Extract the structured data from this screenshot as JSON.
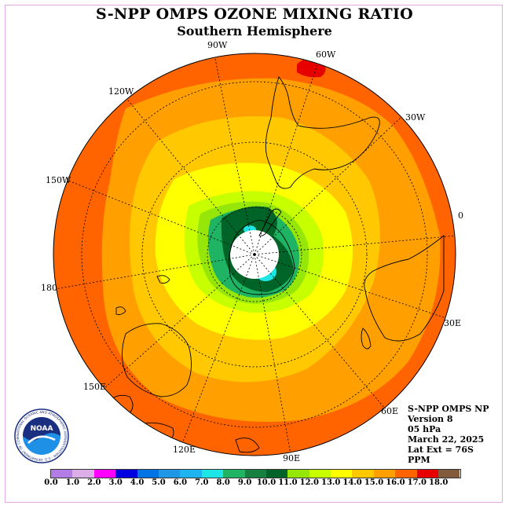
{
  "title": "S-NPP OMPS OZONE MIXING RATIO",
  "subtitle": "Southern Hemisphere",
  "longitude_labels": [
    "90W",
    "60W",
    "30W",
    "0",
    "30E",
    "60E",
    "90E",
    "120E",
    "150E",
    "180",
    "150W",
    "120W"
  ],
  "info": {
    "product": "S-NPP OMPS NP",
    "version": "Version 8",
    "level": "05 hPa",
    "date": "March 22, 2025",
    "lat_ext": "Lat Ext = 76S",
    "units": "PPM"
  },
  "colorbar": {
    "ticks": [
      "0.0",
      "1.0",
      "2.0",
      "3.0",
      "4.0",
      "5.0",
      "6.0",
      "7.0",
      "8.0",
      "9.0",
      "10.0",
      "11.0",
      "12.0",
      "13.0",
      "14.0",
      "15.0",
      "16.0",
      "17.0",
      "18.0"
    ],
    "colors": [
      "#b27ee6",
      "#dcaee8",
      "#ff00ff",
      "#0000e0",
      "#0073e6",
      "#1e98e6",
      "#1eb4f0",
      "#1ee6e6",
      "#1eb464",
      "#158040",
      "#006428",
      "#96e60a",
      "#c8ff00",
      "#ffff00",
      "#ffc800",
      "#ffa000",
      "#ff6400",
      "#e60000",
      "#825a3c"
    ]
  },
  "logo": {
    "text": "NOAA",
    "ring_text": "NATIONAL OCEANIC AND ATMOSPHERIC ADMINISTRATION · U.S. DEPARTMENT OF COMMERCE"
  }
}
